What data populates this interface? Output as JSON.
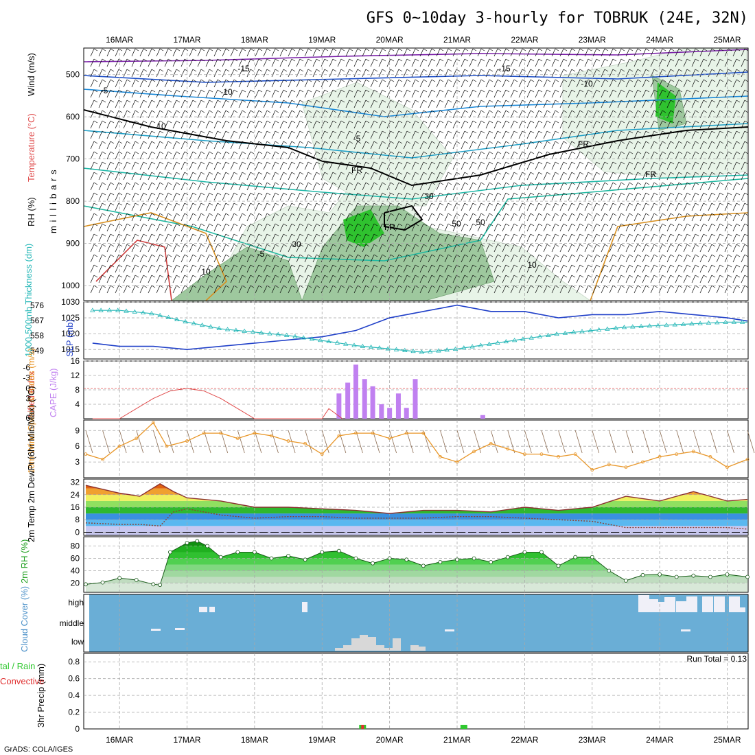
{
  "title": "GFS 0~10day 3-hourly for TOBRUK (24E, 32N)",
  "credit": "GrADS: COLA/IGES",
  "date_labels": [
    "16MAR",
    "17MAR",
    "18MAR",
    "19MAR",
    "20MAR",
    "21MAR",
    "22MAR",
    "23MAR",
    "24MAR",
    "25MAR"
  ],
  "colors": {
    "grid": "#a8a8a8",
    "sky": "#6aaed6",
    "cloud": "#f0f0f8",
    "cloud_low": "#d8d8d8",
    "rh_dark": "#2fc22f",
    "rh_light": "#e8f4e8",
    "slp": "#1f3fc8",
    "thickness": "#28b8b8",
    "cape": "#c080f0",
    "lifted": "#e04848",
    "wind": "#e89628",
    "barb": "#8a6a50",
    "rain": "#e03030",
    "precip_total": "#30c830"
  },
  "chart_data": [
    {
      "type": "heatmap",
      "panel": "upper-air",
      "ylabel": "m i l l i b a r s",
      "side_labels": [
        "RH (%)",
        "Temperature (°C)",
        "Wind (m/s)"
      ],
      "y_ticks": [
        500,
        600,
        700,
        800,
        900,
        1000
      ],
      "contour_labels": [
        "-15",
        "-15",
        "-10",
        "-10",
        "-5",
        "-5",
        "-5",
        "10",
        "10",
        "10",
        "FR",
        "FR",
        "FR",
        "FR",
        "30",
        "50",
        "50",
        "30"
      ]
    },
    {
      "type": "line",
      "panel": "slp-thickness",
      "left_label": "1000-500mb Thickness (dm)",
      "right_label": "SLP (mb)",
      "left_ticks": [
        549,
        558,
        567,
        576
      ],
      "right_ticks": [
        1015,
        1020,
        1025,
        1030
      ],
      "x_days": [
        15.6,
        16.0,
        16.5,
        17.0,
        17.5,
        18.0,
        18.5,
        19.0,
        19.5,
        20.0,
        20.5,
        21.0,
        21.5,
        22.0,
        22.5,
        23.0,
        23.5,
        24.0,
        24.5,
        25.0,
        25.3
      ],
      "series": [
        {
          "name": "SLP (mb)",
          "values": [
            1017,
            1016,
            1016,
            1015,
            1016,
            1017,
            1018,
            1019,
            1021,
            1025,
            1027,
            1029,
            1027,
            1027,
            1025,
            1026,
            1026,
            1027,
            1026,
            1025,
            1024
          ]
        },
        {
          "name": "1000-500mb Thickness (dm)",
          "values": [
            573,
            573,
            571,
            566,
            562,
            560,
            558,
            555,
            552,
            550,
            548,
            550,
            553,
            556,
            559,
            561,
            563,
            564,
            565,
            566,
            566
          ]
        }
      ]
    },
    {
      "type": "bar",
      "panel": "cape-li",
      "left_label": "Lifted Index",
      "right_label": "CAPE (J/kg)",
      "left_ticks": [
        "-6",
        "-3",
        "0",
        "3",
        "6"
      ],
      "right_ticks": [
        4,
        8,
        12,
        16
      ],
      "cape_x_days": [
        19.25,
        19.38,
        19.5,
        19.63,
        19.75,
        19.88,
        20.0,
        20.13,
        20.25,
        20.38,
        21.38
      ],
      "cape_values": [
        7,
        10,
        15,
        11,
        9,
        4,
        3,
        7,
        3,
        11,
        1
      ],
      "li_x_days": [
        15.6,
        16.0,
        16.5,
        16.75,
        17.0,
        17.25,
        17.5,
        17.75,
        18.0,
        19.0,
        19.1,
        19.3
      ],
      "li_values": [
        6,
        6,
        2,
        0.5,
        0,
        0.5,
        2,
        4,
        6,
        6,
        4,
        6
      ]
    },
    {
      "type": "line",
      "panel": "wind10m",
      "ylabel": "10m Wind Speed & Barbs (m/s)",
      "y_ticks": [
        3,
        6,
        9
      ],
      "x_days": [
        15.5,
        15.75,
        16.0,
        16.25,
        16.5,
        16.7,
        17.0,
        17.25,
        17.5,
        17.75,
        18.0,
        18.25,
        18.5,
        18.75,
        19.0,
        19.25,
        19.5,
        19.75,
        20.0,
        20.25,
        20.5,
        20.75,
        21.0,
        21.25,
        21.5,
        21.75,
        22.0,
        22.25,
        22.5,
        22.75,
        23.0,
        23.25,
        23.5,
        23.75,
        24.0,
        24.25,
        24.5,
        24.75,
        25.0,
        25.3
      ],
      "values": [
        4.5,
        3.5,
        6,
        7.5,
        10.5,
        6,
        7,
        8.5,
        8.5,
        7.5,
        8.5,
        8,
        7,
        6.5,
        4.5,
        8,
        8.5,
        8.5,
        7.5,
        8.5,
        8.5,
        4,
        3,
        5,
        6.5,
        5.5,
        4.5,
        4.5,
        4,
        4.5,
        1.5,
        2.5,
        2,
        3,
        4,
        4.5,
        5,
        4,
        2,
        3.5
      ]
    },
    {
      "type": "area",
      "panel": "temp2m",
      "ylabel": "2m Temp 2m DewPt (6hr Min/Max) (°C)",
      "y_ticks": [
        0,
        8,
        16,
        24,
        32
      ],
      "x_days": [
        15.5,
        16.0,
        16.3,
        16.6,
        16.8,
        17.0,
        17.5,
        18.0,
        18.5,
        19.0,
        19.5,
        20.0,
        20.5,
        21.0,
        21.5,
        22.0,
        22.5,
        23.0,
        23.5,
        24.0,
        24.5,
        25.0,
        25.3
      ],
      "series": [
        {
          "name": "2m Temp",
          "values": [
            30,
            25,
            23,
            31,
            26,
            22,
            20,
            16,
            16,
            15,
            14,
            12,
            14,
            14,
            13,
            16,
            14,
            16,
            23,
            20,
            26,
            20,
            21
          ]
        },
        {
          "name": "2m DewPt",
          "values": [
            6,
            5,
            5,
            4,
            13,
            15,
            11,
            9,
            10,
            10,
            9,
            9,
            9,
            10,
            10,
            9,
            8,
            7,
            3,
            3,
            3,
            3,
            2
          ]
        }
      ]
    },
    {
      "type": "area",
      "panel": "rh2m",
      "ylabel": "2m RH (%)",
      "y_ticks": [
        20,
        40,
        60,
        80
      ],
      "x_days": [
        15.5,
        15.75,
        16.0,
        16.25,
        16.5,
        16.6,
        16.75,
        17.0,
        17.15,
        17.3,
        17.5,
        17.75,
        18.0,
        18.25,
        18.5,
        18.75,
        19.0,
        19.25,
        19.5,
        19.75,
        20.0,
        20.25,
        20.5,
        20.75,
        21.0,
        21.25,
        21.5,
        21.75,
        22.0,
        22.25,
        22.5,
        22.75,
        23.0,
        23.25,
        23.5,
        23.75,
        24.0,
        24.25,
        24.5,
        24.75,
        25.0,
        25.3
      ],
      "values": [
        18,
        21,
        28,
        25,
        18,
        17,
        70,
        85,
        88,
        80,
        62,
        70,
        70,
        60,
        64,
        58,
        70,
        72,
        60,
        52,
        60,
        58,
        48,
        54,
        58,
        60,
        54,
        62,
        70,
        70,
        48,
        62,
        62,
        40,
        24,
        33,
        34,
        30,
        32,
        30,
        34,
        30
      ]
    },
    {
      "type": "bar",
      "panel": "cloud",
      "ylabel": "Cloud Cover (%)",
      "levels": [
        "high",
        "middle",
        "low"
      ]
    },
    {
      "type": "bar",
      "panel": "precip",
      "ylabel": "3hr Precip (mm)",
      "side_label_1": "tal / Rain",
      "side_label_2": "Convective",
      "annotation": "Run Total = 0.13",
      "y_ticks": [
        "0",
        "0.2",
        "0.4",
        "0.6",
        "0.8"
      ],
      "x_days": [
        19.6,
        21.1
      ],
      "values": [
        0.02,
        0.02
      ]
    }
  ]
}
